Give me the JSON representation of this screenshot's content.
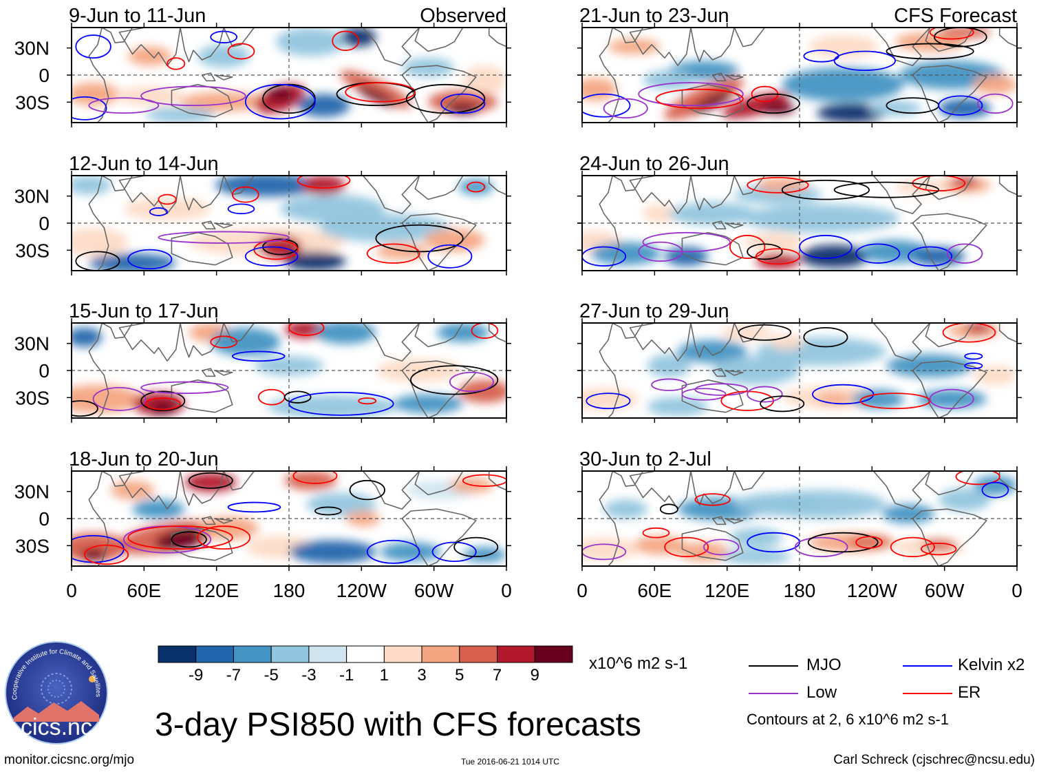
{
  "panels": [
    {
      "title": "9-Jun to 11-Jun",
      "label": "Observed"
    },
    {
      "title": "12-Jun to 14-Jun",
      "label": ""
    },
    {
      "title": "15-Jun to 17-Jun",
      "label": ""
    },
    {
      "title": "18-Jun to 20-Jun",
      "label": ""
    },
    {
      "title": "21-Jun to 23-Jun",
      "label": "CFS Forecast"
    },
    {
      "title": "24-Jun to 26-Jun",
      "label": ""
    },
    {
      "title": "27-Jun to 29-Jun",
      "label": ""
    },
    {
      "title": "30-Jun to 2-Jul",
      "label": ""
    }
  ],
  "lat_labels": [
    "30N",
    "0",
    "30S"
  ],
  "lon_labels": [
    "0",
    "60E",
    "120E",
    "180",
    "120W",
    "60W",
    "0"
  ],
  "colorbar": {
    "colors": [
      "#08306b",
      "#2166ac",
      "#4393c3",
      "#92c5de",
      "#d1e5f0",
      "#ffffff",
      "#fddbc7",
      "#f4a582",
      "#d6604d",
      "#b2182b",
      "#67001f"
    ],
    "tick_labels": [
      "-9",
      "-7",
      "-5",
      "-3",
      "-1",
      "1",
      "3",
      "5",
      "7",
      "9"
    ],
    "units": "x10^6 m2 s-1"
  },
  "legend": {
    "items": [
      {
        "label": "MJO",
        "color": "#000000"
      },
      {
        "label": "Kelvin x2",
        "color": "#0000ff"
      },
      {
        "label": "Low",
        "color": "#9932cc"
      },
      {
        "label": "ER",
        "color": "#ff0000"
      }
    ],
    "contour_note": "Contours at 2, 6 x10^6 m2 s-1"
  },
  "title": "3-day PSI850 with CFS forecasts",
  "footer": {
    "url": "monitor.cicsnc.org/mjo",
    "timestamp": "Tue 2016-06-21 1014 UTC",
    "author": "Carl Schreck (cjschrec@ncsu.edu)"
  },
  "logo": {
    "text": "cics.nc",
    "ring_text": "Cooperative Institute for Climate and Satellites"
  }
}
